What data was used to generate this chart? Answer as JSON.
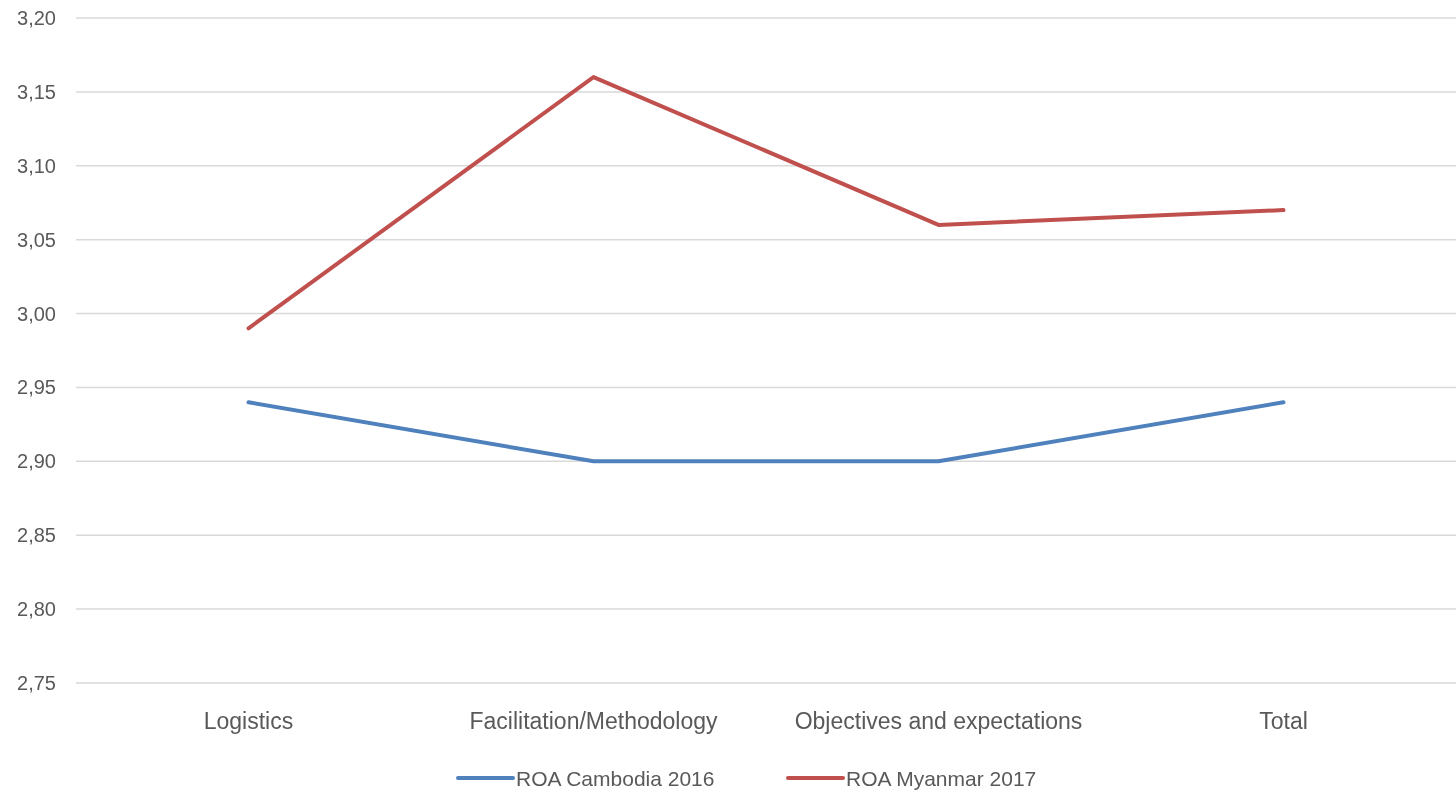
{
  "chart_data": {
    "type": "line",
    "categories": [
      "Logistics",
      "Facilitation/Methodology",
      "Objectives and expectations",
      "Total"
    ],
    "series": [
      {
        "name": "ROA Cambodia 2016",
        "color": "#4f81bd",
        "values": [
          2.94,
          2.9,
          2.9,
          2.94
        ]
      },
      {
        "name": "ROA Myanmar 2017",
        "color": "#c0504d",
        "values": [
          2.99,
          3.16,
          3.06,
          3.07
        ]
      }
    ],
    "ylim": [
      2.75,
      3.2
    ],
    "yticks": [
      {
        "value": 2.75,
        "label": "2,75"
      },
      {
        "value": 2.8,
        "label": "2,80"
      },
      {
        "value": 2.85,
        "label": "2,85"
      },
      {
        "value": 2.9,
        "label": "2,90"
      },
      {
        "value": 2.95,
        "label": "2,95"
      },
      {
        "value": 3.0,
        "label": "3,00"
      },
      {
        "value": 3.05,
        "label": "3,05"
      },
      {
        "value": 3.1,
        "label": "3,10"
      },
      {
        "value": 3.15,
        "label": "3,15"
      },
      {
        "value": 3.2,
        "label": "3,20"
      }
    ],
    "grid": "y",
    "legend": "bottom",
    "marker": "none",
    "line_style": "solid"
  }
}
